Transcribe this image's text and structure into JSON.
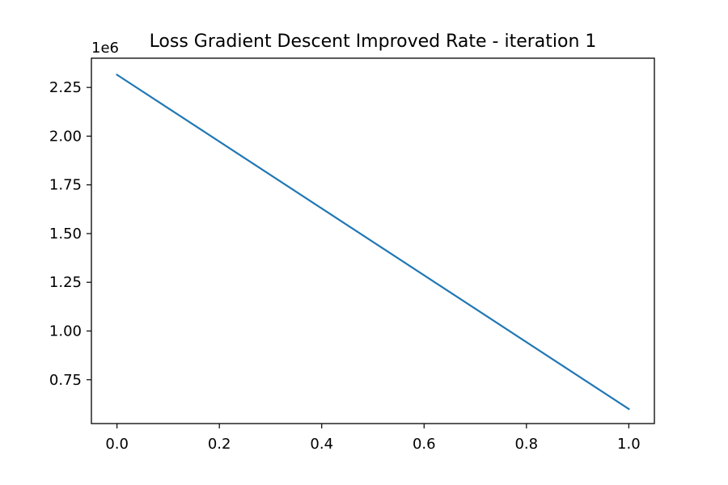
{
  "chart_data": {
    "type": "line",
    "title": "Loss Gradient Descent Improved Rate - iteration 1",
    "xlabel": "",
    "ylabel": "",
    "y_offset_label": "1e6",
    "xlim": [
      -0.05,
      1.05
    ],
    "ylim": [
      0.525,
      2.4
    ],
    "x_ticks": [
      0.0,
      0.2,
      0.4,
      0.6,
      0.8,
      1.0
    ],
    "x_tick_labels": [
      "0.0",
      "0.2",
      "0.4",
      "0.6",
      "0.8",
      "1.0"
    ],
    "y_ticks": [
      0.75,
      1.0,
      1.25,
      1.5,
      1.75,
      2.0,
      2.25
    ],
    "y_tick_labels": [
      "0.75",
      "1.00",
      "1.25",
      "1.50",
      "1.75",
      "2.00",
      "2.25"
    ],
    "grid": false,
    "series": [
      {
        "x": [
          0.0,
          1.0
        ],
        "y": [
          2.315,
          0.6
        ],
        "color": "#1f77b4"
      }
    ]
  }
}
